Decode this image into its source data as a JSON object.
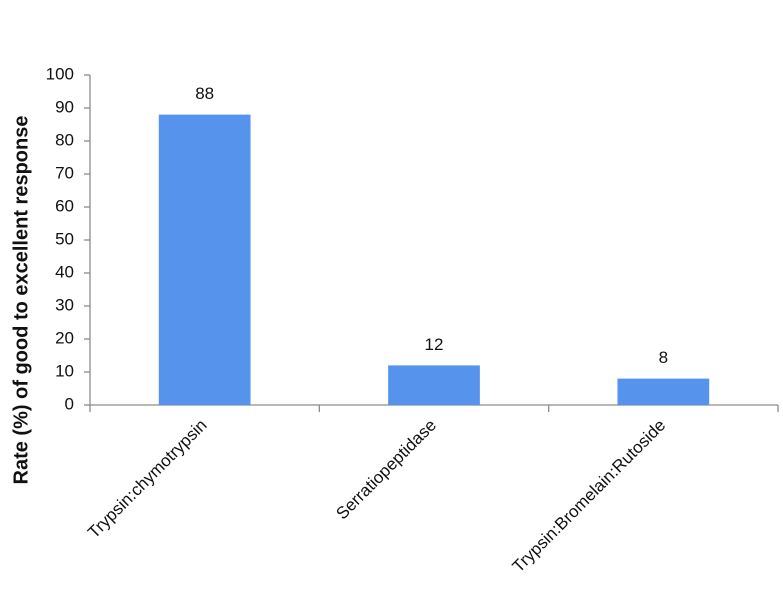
{
  "chart_data": {
    "type": "bar",
    "y_label": "Rate (%) of good to excellent response",
    "categories": [
      "Trypsin:chymotrypsin",
      "Serratiopeptidase",
      "Trypsin:Bromelain:Rutoside"
    ],
    "values": [
      88,
      12,
      8
    ],
    "color": "#5593ed",
    "ylim": [
      0,
      100
    ],
    "yticks": [
      0,
      10,
      20,
      30,
      40,
      50,
      60,
      70,
      80,
      90,
      100
    ],
    "grid": false,
    "data_labels": true
  }
}
